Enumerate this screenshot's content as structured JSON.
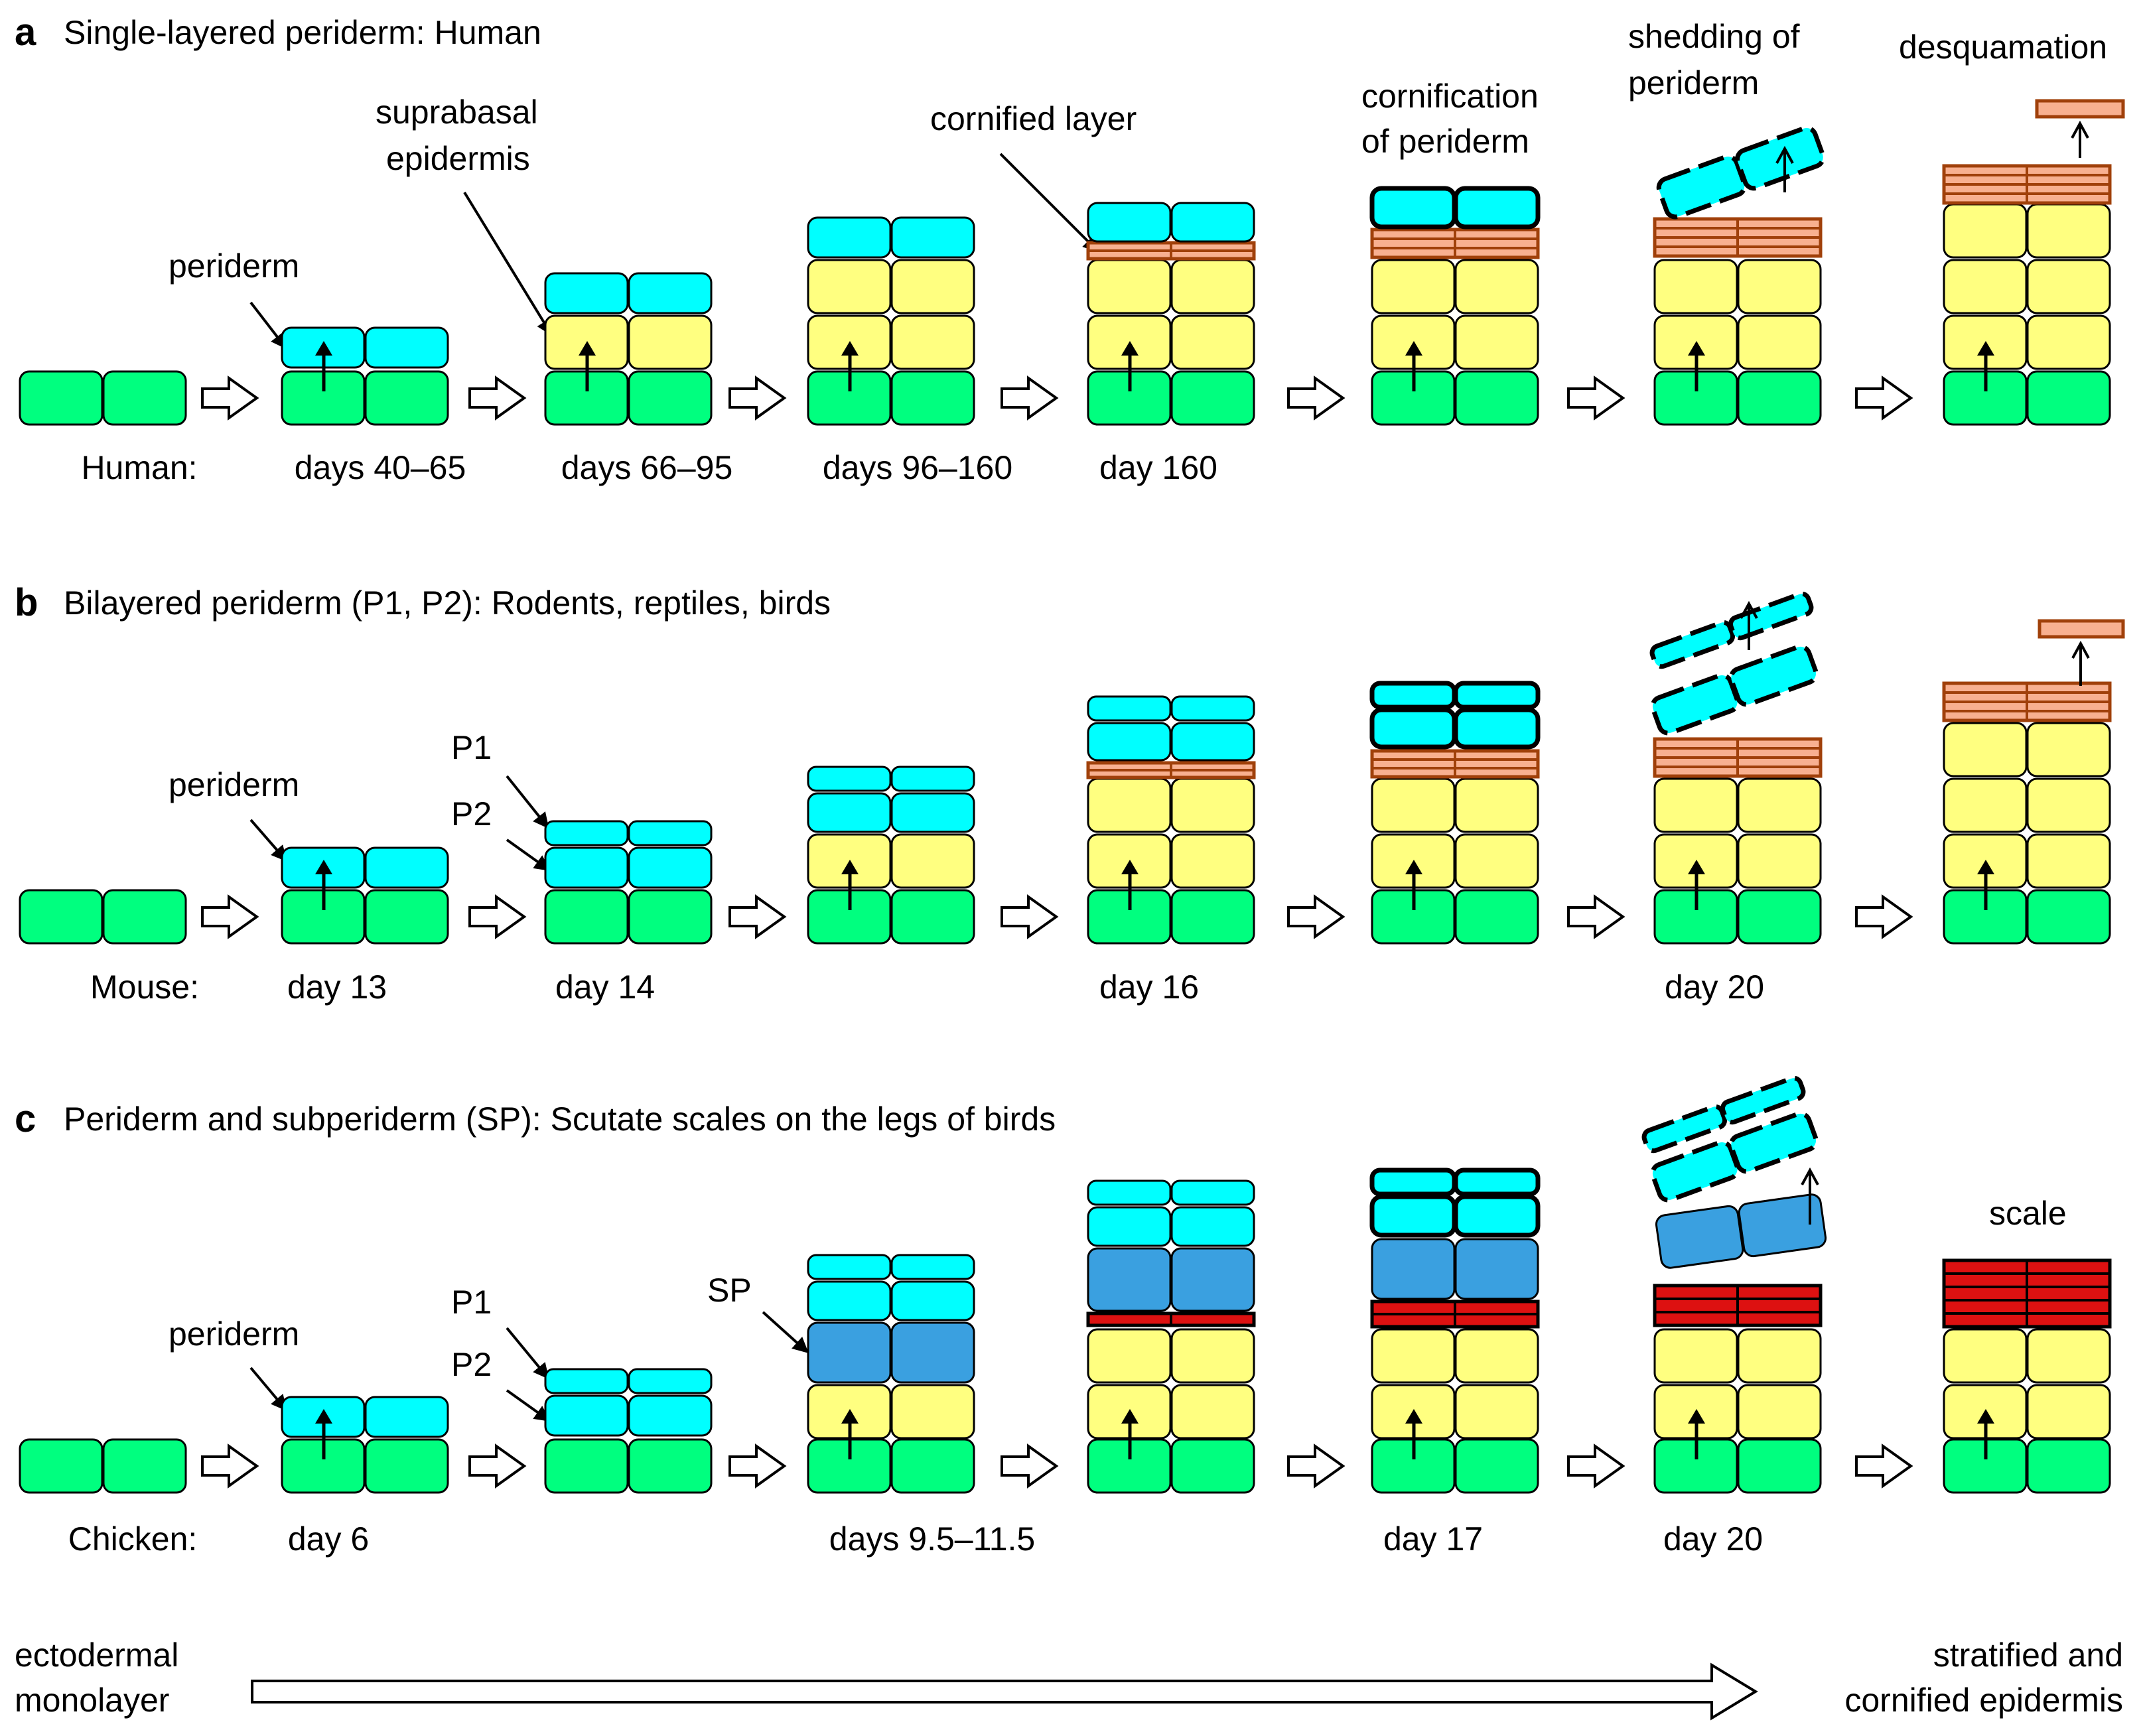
{
  "panels": [
    {
      "letter": "a",
      "title": "Single-layered periderm: Human",
      "species": "Human:",
      "stages": [
        {
          "label": ""
        },
        {
          "label": "days 40–65"
        },
        {
          "label": "days 66–95"
        },
        {
          "label": "days 96–160"
        },
        {
          "label": "day 160"
        },
        {
          "label": ""
        },
        {
          "label": ""
        },
        {
          "label": ""
        }
      ],
      "annotations": {
        "periderm": "periderm",
        "suprabasal_1": "suprabasal",
        "suprabasal_2": "epidermis",
        "cornified_layer": "cornified layer",
        "cornification_1": "cornification",
        "cornification_2": "of periderm",
        "shedding_1": "shedding of",
        "shedding_2": "periderm",
        "desquamation": "desquamation"
      }
    },
    {
      "letter": "b",
      "title": "Bilayered periderm (P1, P2): Rodents, reptiles, birds",
      "species": "Mouse:",
      "stages": [
        {
          "label": ""
        },
        {
          "label": "day 13"
        },
        {
          "label": "day 14"
        },
        {
          "label": ""
        },
        {
          "label": "day 16"
        },
        {
          "label": ""
        },
        {
          "label": "day 20"
        },
        {
          "label": ""
        }
      ],
      "annotations": {
        "periderm": "periderm",
        "p1": "P1",
        "p2": "P2"
      }
    },
    {
      "letter": "c",
      "title": "Periderm and subperiderm (SP): Scutate scales on the legs of birds",
      "species": "Chicken:",
      "stages": [
        {
          "label": ""
        },
        {
          "label": "day 6"
        },
        {
          "label": ""
        },
        {
          "label": "days 9.5–11.5"
        },
        {
          "label": ""
        },
        {
          "label": "day 17"
        },
        {
          "label": "day 20"
        },
        {
          "label": ""
        }
      ],
      "annotations": {
        "periderm": "periderm",
        "p1": "P1",
        "p2": "P2",
        "sp": "SP",
        "scale": "scale"
      }
    }
  ],
  "footer": {
    "left_1": "ectodermal",
    "left_2": "monolayer",
    "right_1": "stratified and",
    "right_2": "cornified epidermis"
  },
  "colors": {
    "basal": "#00ff7f",
    "suprabasal": "#ffff80",
    "periderm": "#00ffff",
    "subperiderm": "#3aa0e0",
    "cornified_human_mouse": "#f8b090",
    "cornified_border": "#a0400a",
    "scale_keratin": "#dd1111",
    "outline": "#000000"
  }
}
